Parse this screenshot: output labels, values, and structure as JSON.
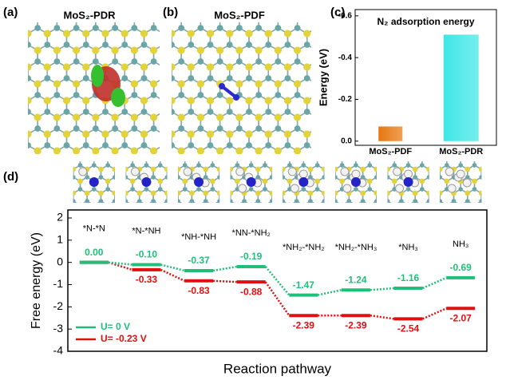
{
  "panels": [
    {
      "label": "(a)",
      "title": "MoS₂-PDR"
    },
    {
      "label": "(b)",
      "title": "MoS₂-PDF"
    }
  ],
  "chart_data": [
    {
      "type": "bar",
      "panel": "(c)",
      "title": "N₂ adsorption energy",
      "y_label": "Energy (eV)",
      "categories": [
        "MoS₂-PDF",
        "MoS₂-PDR"
      ],
      "values": [
        -0.07,
        -0.51
      ],
      "colors": [
        "#e8760c",
        "#3ee6e6"
      ],
      "ylim": [
        0.02,
        -0.63
      ],
      "yticks": [
        {
          "value": 0,
          "label": "0.0"
        },
        -0.2,
        -0.4,
        -0.6
      ]
    },
    {
      "type": "energy_levels",
      "panel": "(d)",
      "x_label": "Reaction pathway",
      "y_label": "Free energy (eV)",
      "categories": [
        "*N-*N",
        "*N-*NH",
        "*NH-*NH",
        "*NN-*NH₂",
        "*NH₂-*NH₂",
        "*NH₂-*NH₃",
        "*NH₃",
        "NH₃"
      ],
      "series": [
        {
          "name": "U= 0 V",
          "color": "#1fbf7a",
          "values": [
            0,
            -0.1,
            -0.37,
            -0.19,
            -1.47,
            -1.24,
            -1.16,
            -0.69
          ],
          "value_labels": [
            "0.00",
            "-0.10",
            "-0.37",
            "-0.19",
            "-1.47",
            "-1.24",
            "-1.16",
            "-0.69"
          ]
        },
        {
          "name": "U= -0.23 V",
          "color": "#e01010",
          "values": [
            0,
            -0.33,
            -0.83,
            -0.88,
            -2.39,
            -2.39,
            -2.54,
            -2.07
          ],
          "value_labels": [
            null,
            "-0.33",
            "-0.83",
            "-0.88",
            "-2.39",
            "-2.39",
            "-2.54",
            "-2.07"
          ]
        }
      ],
      "ylim": [
        -4,
        2.36
      ],
      "yticks": [
        2,
        1,
        0,
        -1,
        -2,
        -3,
        -4
      ],
      "legend": "lower left"
    }
  ]
}
